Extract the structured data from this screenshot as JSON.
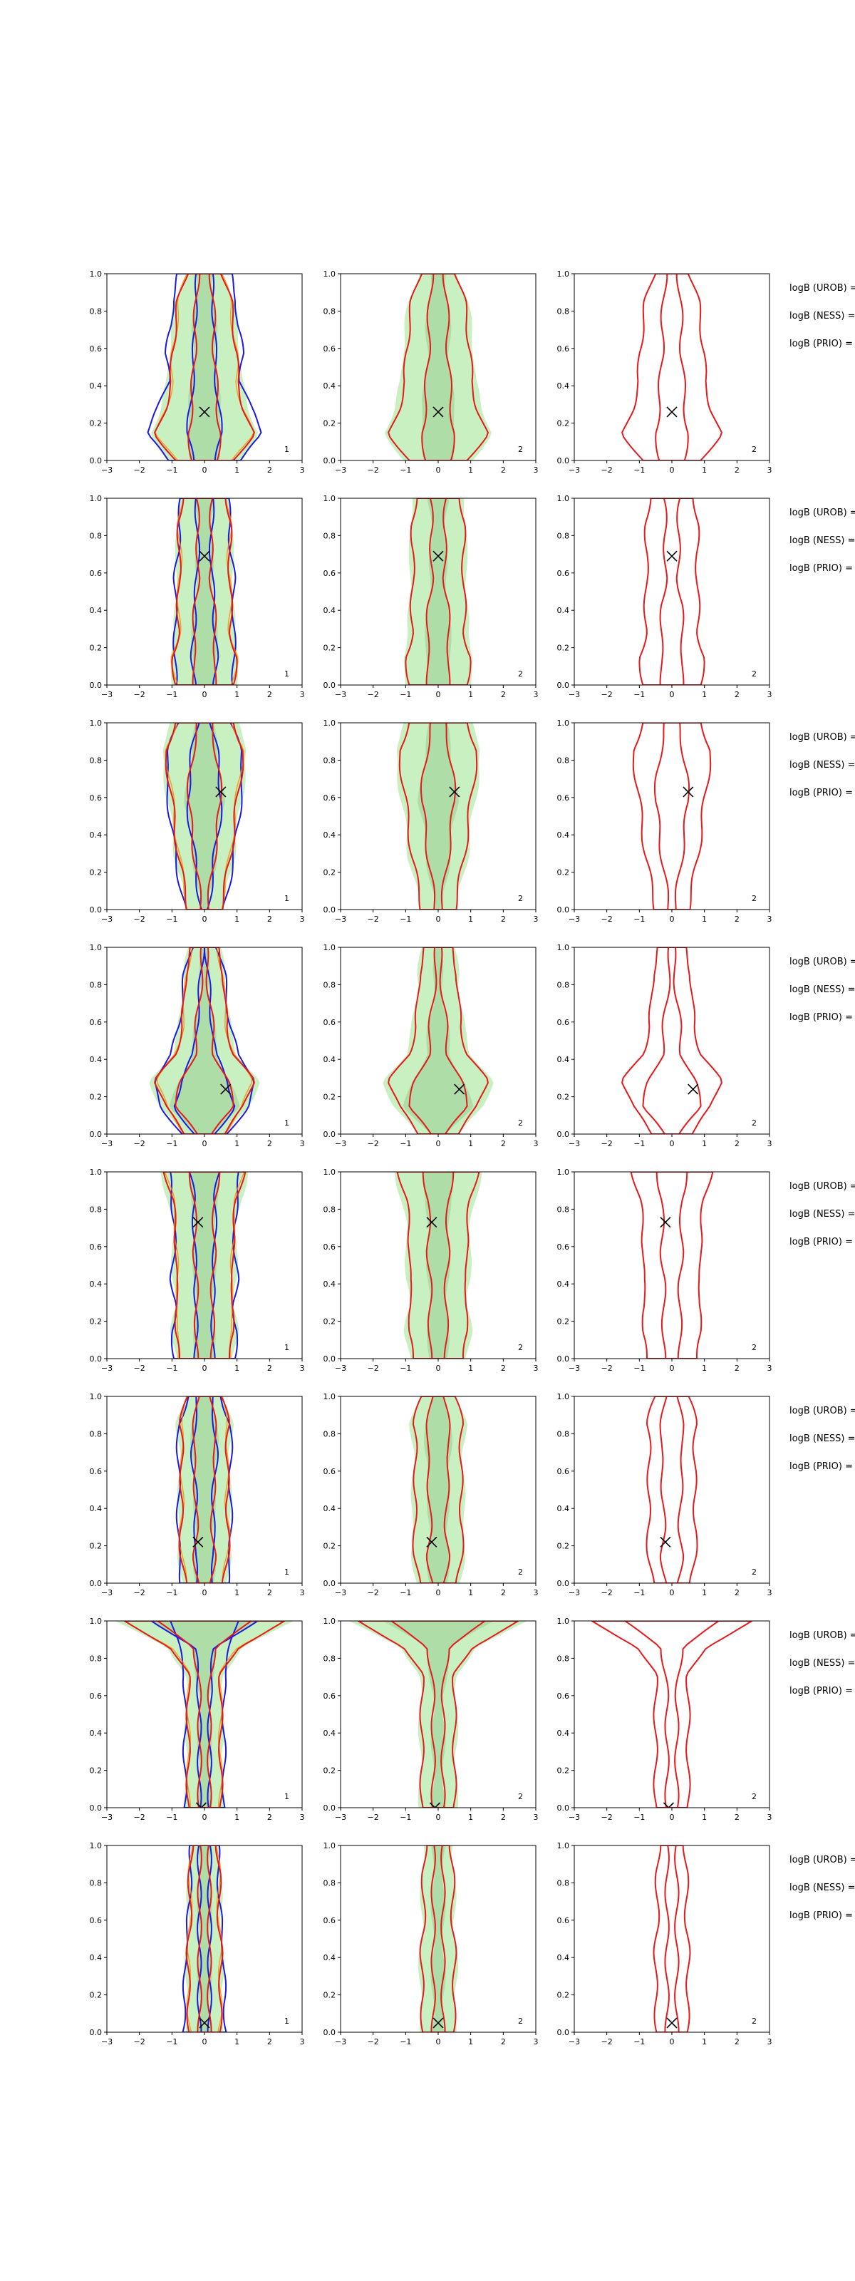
{
  "chart_data": {
    "type": "contour-grid",
    "xlim": [
      -3,
      3
    ],
    "ylim": [
      0,
      1
    ],
    "xticks": [
      -3,
      -2,
      -1,
      0,
      1,
      2,
      3
    ],
    "yticks": [
      0.0,
      0.2,
      0.4,
      0.6,
      0.8,
      1.0
    ],
    "xtick_labels": [
      "−3",
      "−2",
      "−1",
      "0",
      "1",
      "2",
      "3"
    ],
    "ytick_labels": [
      "0.0",
      "0.2",
      "0.4",
      "0.6",
      "0.8",
      "1.0"
    ],
    "grid": false,
    "colors": {
      "red": "#e41a1c",
      "blue": "#1a1ae4",
      "green_fill": "#c8f0c0",
      "green_dark": "#a8d8a0",
      "orange": "#ff8c00",
      "cyan": "#00bfbf"
    },
    "column_labels": [
      "1",
      "2",
      "2"
    ],
    "side_labels": [
      "logB (UROB) =",
      "logB (NESS) =",
      "logB (PRIO) ="
    ],
    "rows": [
      {
        "marker": [
          0.0,
          0.26
        ],
        "outer": [
          0.9,
          1.5,
          1.2,
          1.0,
          1.0,
          0.9,
          0.8,
          0.55
        ],
        "inner": [
          0.35,
          0.5,
          0.4,
          0.35,
          0.3,
          0.3,
          0.25,
          0.2
        ],
        "blue_outer": [
          1.1,
          1.8,
          1.4,
          1.1,
          1.2,
          1.0,
          1.0,
          0.8
        ]
      },
      {
        "marker": [
          0.0,
          0.69
        ],
        "outer": [
          0.85,
          1.0,
          0.8,
          0.8,
          0.8,
          0.75,
          0.8,
          0.7
        ],
        "inner": [
          0.3,
          0.35,
          0.3,
          0.3,
          0.2,
          0.2,
          0.2,
          0.25
        ],
        "blue_outer": [
          0.9,
          0.9,
          0.9,
          0.9,
          0.9,
          0.8,
          0.8,
          0.7
        ]
      },
      {
        "marker": [
          0.5,
          0.63
        ],
        "outer": [
          0.5,
          0.65,
          0.8,
          0.9,
          1.0,
          1.1,
          1.2,
          0.9
        ],
        "inner": [
          0.1,
          0.2,
          0.3,
          0.4,
          0.5,
          0.45,
          0.35,
          0.2
        ],
        "blue_outer": [
          0.6,
          0.75,
          0.9,
          1.0,
          1.1,
          1.2,
          1.1,
          0.8
        ]
      },
      {
        "marker": [
          0.65,
          0.24
        ],
        "outer": [
          0.6,
          1.2,
          1.5,
          0.9,
          0.7,
          0.6,
          0.6,
          0.4
        ],
        "inner": [
          0.25,
          0.9,
          0.7,
          0.3,
          0.25,
          0.15,
          0.1,
          0.05
        ],
        "blue_outer": [
          0.7,
          1.3,
          1.6,
          1.0,
          0.8,
          0.7,
          0.6,
          0.4
        ]
      },
      {
        "marker": [
          -0.2,
          0.73
        ],
        "outer": [
          0.8,
          0.9,
          0.8,
          0.9,
          0.85,
          0.9,
          1.0,
          1.2
        ],
        "inner": [
          0.25,
          0.25,
          0.25,
          0.25,
          0.3,
          0.3,
          0.3,
          0.45
        ],
        "blue_outer": [
          0.9,
          1.0,
          0.9,
          1.0,
          0.95,
          0.9,
          1.0,
          1.1
        ]
      },
      {
        "marker": [
          -0.2,
          0.22
        ],
        "outer": [
          0.6,
          0.7,
          0.75,
          0.7,
          0.7,
          0.7,
          0.75,
          0.5
        ],
        "inner": [
          0.2,
          0.3,
          0.25,
          0.25,
          0.3,
          0.35,
          0.3,
          0.2
        ],
        "blue_outer": [
          0.7,
          0.8,
          0.8,
          0.8,
          0.8,
          0.8,
          0.8,
          0.5
        ]
      },
      {
        "marker": [
          -0.1,
          0.0
        ],
        "outer": [
          0.5,
          0.5,
          0.5,
          0.5,
          0.5,
          0.5,
          1.0,
          2.5
        ],
        "inner": [
          0.15,
          0.15,
          0.15,
          0.15,
          0.15,
          0.2,
          0.3,
          1.5
        ],
        "blue_outer": [
          0.6,
          0.6,
          0.6,
          0.6,
          0.6,
          0.6,
          0.8,
          1.0
        ]
      },
      {
        "marker": [
          0.0,
          0.05
        ],
        "outer": [
          0.45,
          0.5,
          0.5,
          0.5,
          0.45,
          0.45,
          0.45,
          0.4
        ],
        "inner": [
          0.15,
          0.15,
          0.15,
          0.15,
          0.15,
          0.15,
          0.15,
          0.15
        ],
        "blue_outer": [
          0.7,
          0.6,
          0.6,
          0.6,
          0.5,
          0.45,
          0.45,
          0.4
        ]
      }
    ]
  }
}
